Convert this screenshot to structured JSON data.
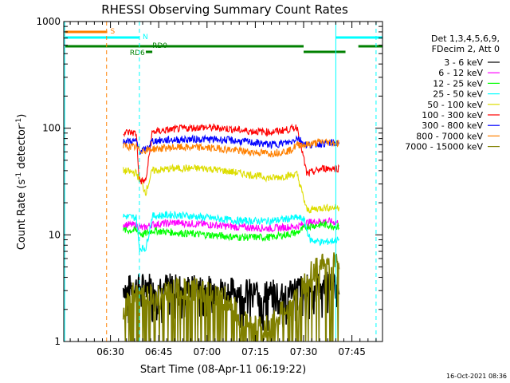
{
  "chart_data": {
    "type": "line",
    "title": "RHESSI Observing Summary Count Rates",
    "xlabel": "Start Time (08-Apr-11 06:19:22)",
    "ylabel_main": "Count Rate (s",
    "ylabel_sup1": "-1",
    "ylabel_mid": " detector",
    "ylabel_sup2": "-1",
    "ylabel_end": ")",
    "yscale": "log",
    "xlim": [
      375.5,
      474.5
    ],
    "ylim": [
      1,
      1000
    ],
    "x_ticks": [
      {
        "value": 390,
        "label": "06:30"
      },
      {
        "value": 405,
        "label": "06:45"
      },
      {
        "value": 420,
        "label": "07:00"
      },
      {
        "value": 435,
        "label": "07:15"
      },
      {
        "value": 450,
        "label": "07:30"
      },
      {
        "value": 465,
        "label": "07:45"
      }
    ],
    "y_ticks": [
      {
        "value": 1,
        "label": "1"
      },
      {
        "value": 10,
        "label": "10"
      },
      {
        "value": 100,
        "label": "100"
      },
      {
        "value": 1000,
        "label": "1000"
      }
    ],
    "legend_header": [
      "Det 1,3,4,5,6,9,",
      "FDecim 2, Att 0"
    ],
    "legend_position": "right",
    "series": [
      {
        "name": "3 - 6 keV",
        "color": "#000000",
        "x": [
          394,
          398,
          403,
          410,
          420,
          430,
          440,
          448,
          451,
          456,
          461
        ],
        "y": [
          3.2,
          3.3,
          3.5,
          3.3,
          3.2,
          3.0,
          2.9,
          3.2,
          3.3,
          3.5,
          3.5
        ]
      },
      {
        "name": "6 - 12 keV",
        "color": "#ff00ff",
        "x": [
          394,
          398,
          400,
          403,
          410,
          420,
          430,
          440,
          448,
          451,
          456,
          461
        ],
        "y": [
          12.5,
          12.3,
          11.5,
          12.5,
          13.0,
          12.5,
          11.8,
          11.5,
          12.0,
          13.0,
          13.5,
          13.0
        ]
      },
      {
        "name": "12 - 25 keV",
        "color": "#00ff00",
        "x": [
          394,
          398,
          400,
          403,
          410,
          420,
          430,
          440,
          448,
          451,
          456,
          461
        ],
        "y": [
          11.0,
          11.0,
          10.0,
          11.0,
          10.5,
          10.0,
          9.5,
          9.5,
          10.5,
          12.0,
          12.5,
          12.0
        ]
      },
      {
        "name": "25 - 50 keV",
        "color": "#00ffff",
        "x": [
          394,
          398,
          399,
          401,
          403,
          410,
          420,
          430,
          440,
          448,
          450,
          452,
          456,
          461
        ],
        "y": [
          15.0,
          14.5,
          7.5,
          7.5,
          15.0,
          15.5,
          14.5,
          13.5,
          13.5,
          14.5,
          14.0,
          9.0,
          8.5,
          9.0
        ]
      },
      {
        "name": "50 - 100 keV",
        "color": "#dddd00",
        "x": [
          394,
          398,
          401,
          403,
          410,
          420,
          430,
          440,
          448,
          451,
          456,
          461
        ],
        "y": [
          40,
          38,
          25,
          40,
          42,
          42,
          38,
          34,
          37,
          17,
          18,
          18
        ]
      },
      {
        "name": "100 - 300 keV",
        "color": "#ff0000",
        "x": [
          394,
          398,
          399,
          401,
          403,
          410,
          418,
          425,
          433,
          440,
          446,
          448,
          451,
          454,
          456,
          461
        ],
        "y": [
          92,
          90,
          32,
          32,
          92,
          98,
          102,
          100,
          94,
          92,
          98,
          103,
          37,
          40,
          42,
          42
        ]
      },
      {
        "name": "300 - 800 keV",
        "color": "#0000ff",
        "x": [
          394,
          398,
          399,
          401,
          403,
          410,
          418,
          425,
          433,
          440,
          446,
          448,
          451,
          456,
          461
        ],
        "y": [
          76,
          75,
          62,
          62,
          76,
          78,
          79,
          78,
          74,
          70,
          74,
          82,
          69,
          72,
          73
        ]
      },
      {
        "name": "800 - 7000 keV",
        "color": "#ff8000",
        "x": [
          394,
          398,
          399,
          401,
          403,
          410,
          418,
          425,
          433,
          440,
          446,
          448,
          451,
          456,
          461
        ],
        "y": [
          68,
          66,
          62,
          62,
          64,
          66,
          66,
          64,
          60,
          58,
          62,
          70,
          70,
          75,
          72
        ]
      },
      {
        "name": "7000 - 15000 keV",
        "color": "#808000",
        "x": [
          394,
          398,
          402,
          408,
          414,
          420,
          426,
          432,
          438,
          444,
          448,
          451,
          454,
          458,
          461
        ],
        "y": [
          2.0,
          3.0,
          2.6,
          2.8,
          3.2,
          3.0,
          2.5,
          1.5,
          1.3,
          2.0,
          2.4,
          3.8,
          5.0,
          6.0,
          6.0
        ]
      }
    ],
    "vertical_lines": [
      {
        "x": 375.8,
        "color": "#00ffff",
        "style": "solid"
      },
      {
        "x": 388.8,
        "color": "#ff8000",
        "style": "dashed"
      },
      {
        "x": 399.0,
        "color": "#00ffff",
        "style": "dashed"
      },
      {
        "x": 460.0,
        "color": "#00ffff",
        "style": "solid"
      },
      {
        "x": 472.5,
        "color": "#00ffff",
        "style": "dashed"
      }
    ],
    "flags": [
      {
        "label": "S",
        "color": "#ff8000",
        "row": 0,
        "ranges": [
          [
            376,
            389
          ]
        ]
      },
      {
        "label": "N",
        "color": "#00ffff",
        "row": 1,
        "ranges": [
          [
            376,
            399
          ],
          [
            460,
            474.5
          ]
        ]
      },
      {
        "label": "RD0",
        "color": "#008000",
        "row": 2,
        "ranges": [
          [
            376,
            450
          ],
          [
            467,
            474.5
          ]
        ],
        "label_x": 403
      },
      {
        "label": "RD6",
        "color": "#008000",
        "row": 3,
        "ranges": [
          [
            401,
            403
          ],
          [
            450,
            463
          ]
        ],
        "label_x": 396
      }
    ],
    "grid": false,
    "timestamp": "16-Oct-2021 08:36"
  }
}
